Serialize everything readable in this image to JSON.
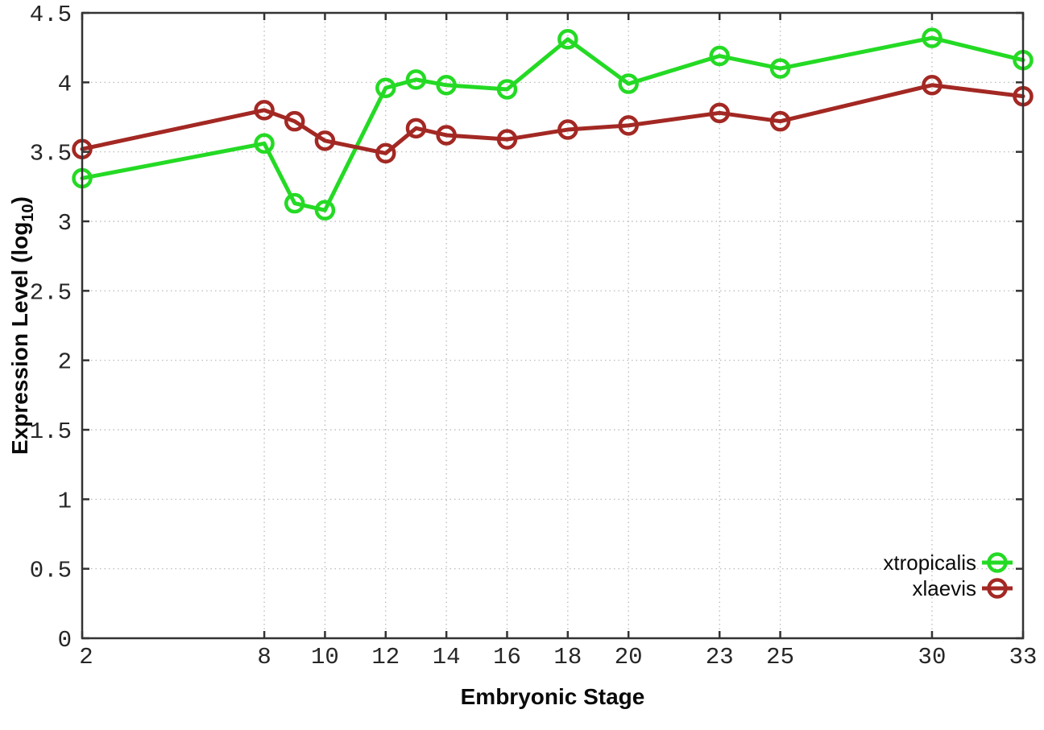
{
  "chart_data": {
    "type": "line",
    "title": "",
    "xlabel": "Embryonic Stage",
    "ylabel": "Expression Level (log10)",
    "ylabel_parts": {
      "prefix": "Expression Level (log",
      "sub": "10",
      "suffix": ")"
    },
    "xlim": [
      2,
      33
    ],
    "ylim": [
      0,
      4.5
    ],
    "x_ticks": [
      2,
      8,
      10,
      12,
      14,
      16,
      18,
      20,
      23,
      25,
      30,
      33
    ],
    "x_tick_labels": [
      "2",
      "8",
      "10",
      "12",
      "14",
      "16",
      "18",
      "20",
      "23",
      "25",
      "30",
      "33"
    ],
    "y_ticks": [
      0,
      0.5,
      1,
      1.5,
      2,
      2.5,
      3,
      3.5,
      4,
      4.5
    ],
    "y_tick_labels": [
      "0",
      "0.5",
      "1",
      "1.5",
      "2",
      "2.5",
      "3",
      "3.5",
      "4",
      "4.5"
    ],
    "grid": true,
    "legend_position": "bottom-right",
    "x": [
      2,
      8,
      9,
      10,
      12,
      13,
      14,
      16,
      18,
      20,
      23,
      25,
      30,
      33
    ],
    "series": [
      {
        "name": "xtropicalis",
        "color": "#24da24",
        "values": [
          3.31,
          3.56,
          3.13,
          3.08,
          3.96,
          4.02,
          3.98,
          3.95,
          4.31,
          3.99,
          4.19,
          4.1,
          4.32,
          4.16
        ]
      },
      {
        "name": "xlaevis",
        "color": "#a32823",
        "values": [
          3.52,
          3.8,
          3.72,
          3.58,
          3.49,
          3.67,
          3.62,
          3.59,
          3.66,
          3.69,
          3.78,
          3.72,
          3.98,
          3.9
        ]
      }
    ],
    "style": {
      "border_color": "#333333",
      "grid_color": "#b4b4b4",
      "background": "#ffffff",
      "line_width": 5,
      "marker": "open-circle",
      "marker_radius": 10.5,
      "marker_stroke": 4.5
    }
  }
}
